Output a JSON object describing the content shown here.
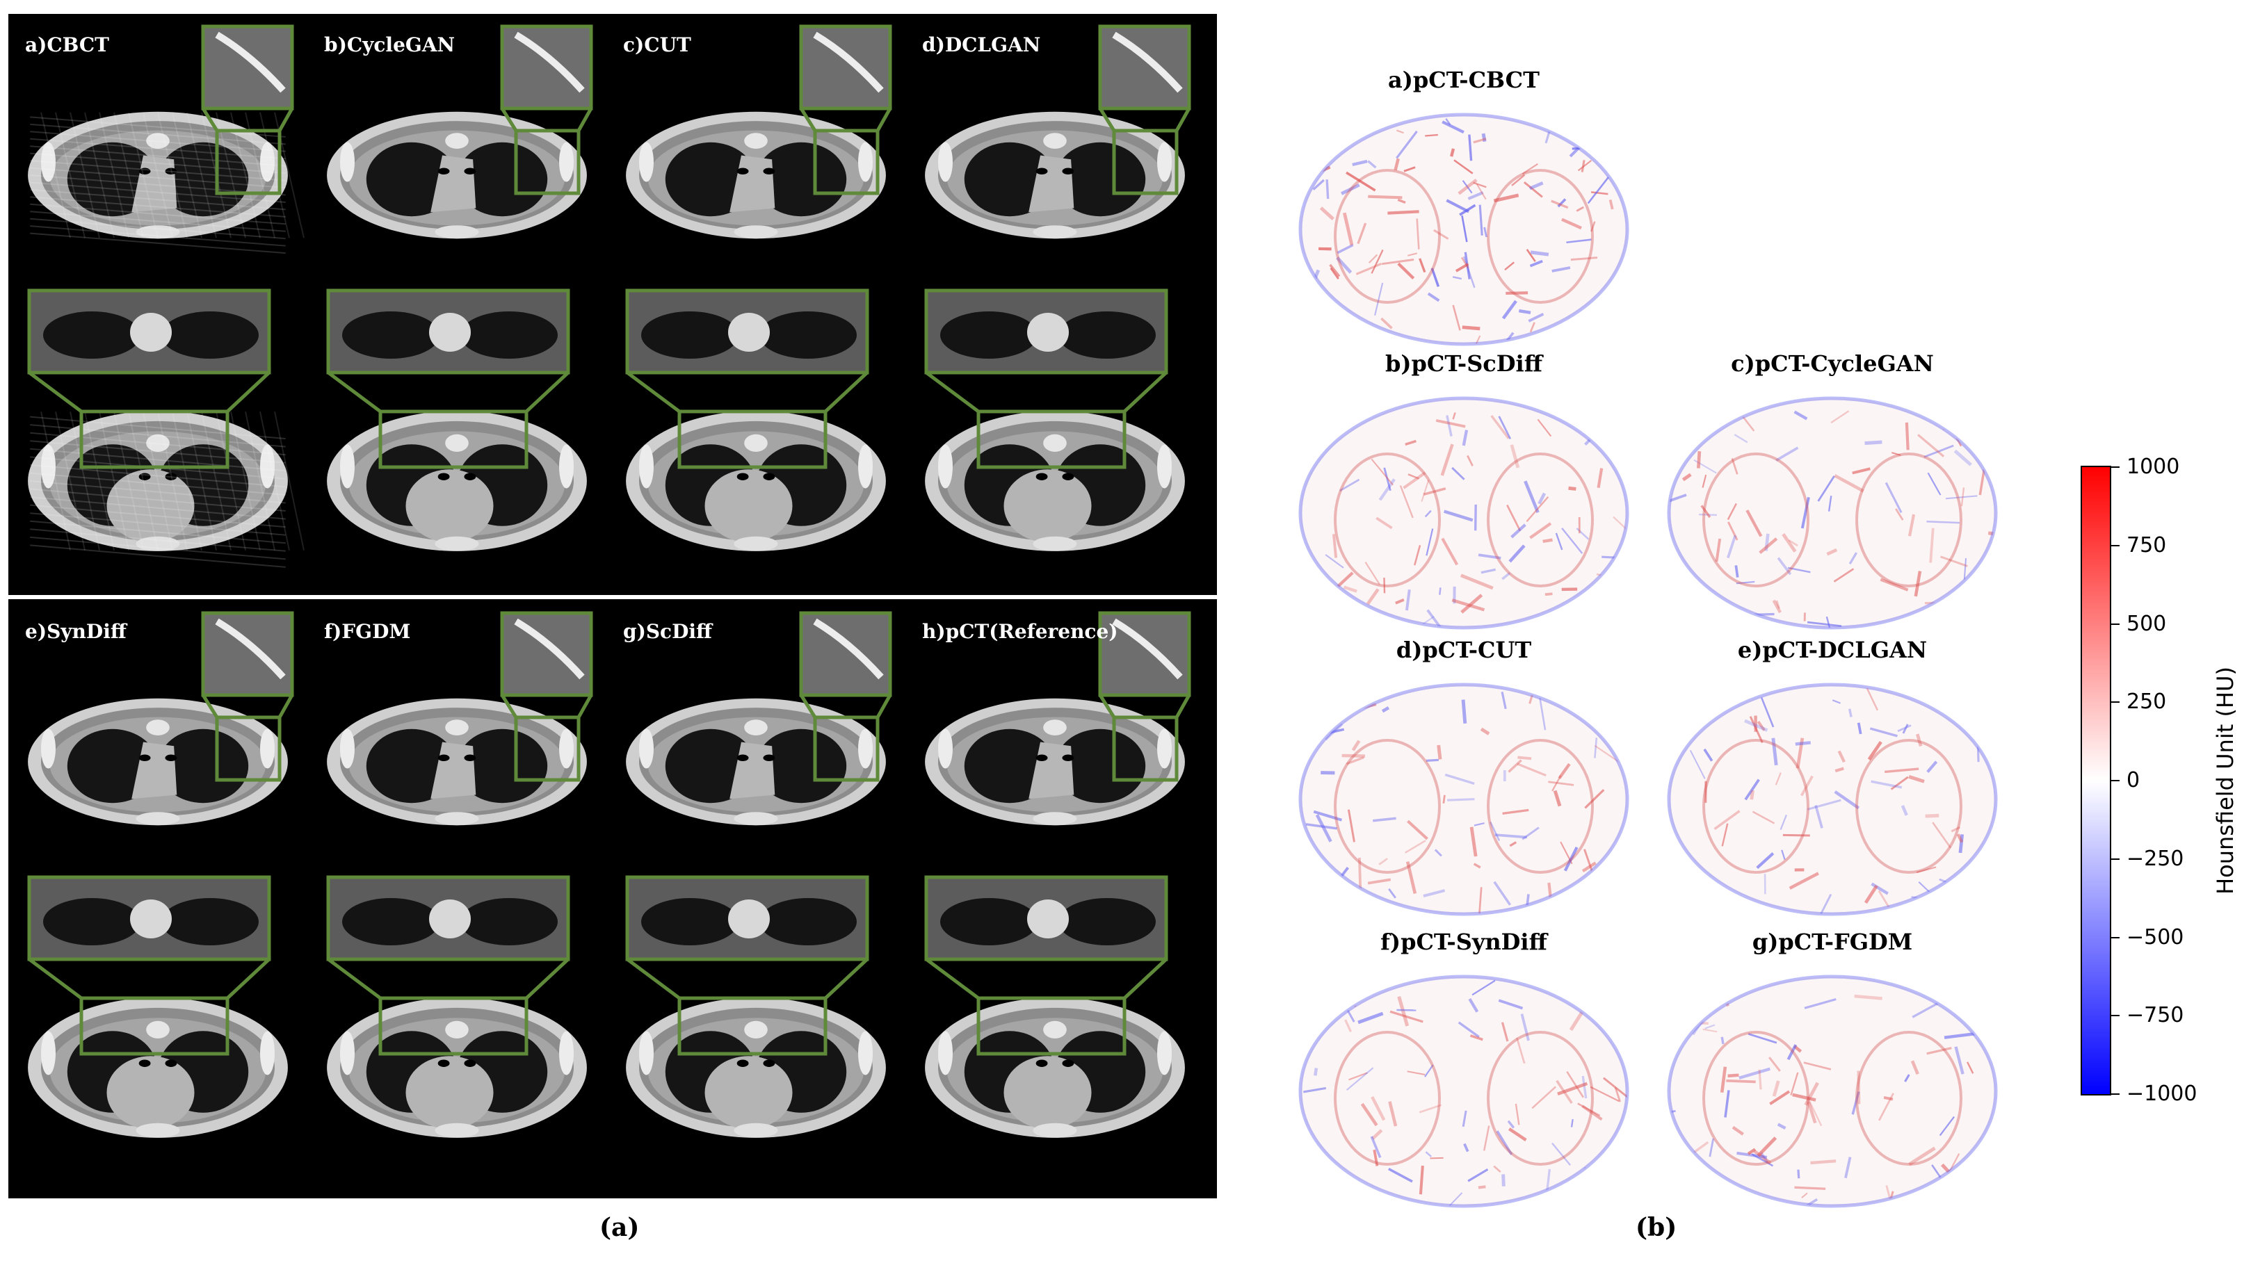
{
  "panel_a": {
    "caption": "(a)",
    "cells": [
      {
        "label": "a)CBCT",
        "noisy": true
      },
      {
        "label": "b)CycleGAN",
        "noisy": false
      },
      {
        "label": "c)CUT",
        "noisy": false
      },
      {
        "label": "d)DCLGAN",
        "noisy": false
      },
      {
        "label": "e)SynDiff",
        "noisy": false
      },
      {
        "label": "f)FGDM",
        "noisy": false
      },
      {
        "label": "g)ScDiff",
        "noisy": false
      },
      {
        "label": "h)pCT(Reference)",
        "noisy": false
      }
    ],
    "box_color": "#5f8a3a"
  },
  "panel_b": {
    "caption": "(b)",
    "maps": [
      {
        "label": "a)pCT-CBCT"
      },
      {
        "label": "b)pCT-ScDiff"
      },
      {
        "label": "c)pCT-CycleGAN"
      },
      {
        "label": "d)pCT-CUT"
      },
      {
        "label": "e)pCT-DCLGAN"
      },
      {
        "label": "f)pCT-SynDiff"
      },
      {
        "label": "g)pCT-FGDM"
      }
    ],
    "colorbar": {
      "title": "Hounsfield Unit (HU)",
      "ticks": [
        "1000",
        "750",
        "500",
        "250",
        "0",
        "−250",
        "−500",
        "−750",
        "−1000"
      ],
      "range": [
        -1000,
        1000
      ],
      "colors": [
        "#0000ff",
        "#ffffff",
        "#ff0000"
      ]
    }
  }
}
